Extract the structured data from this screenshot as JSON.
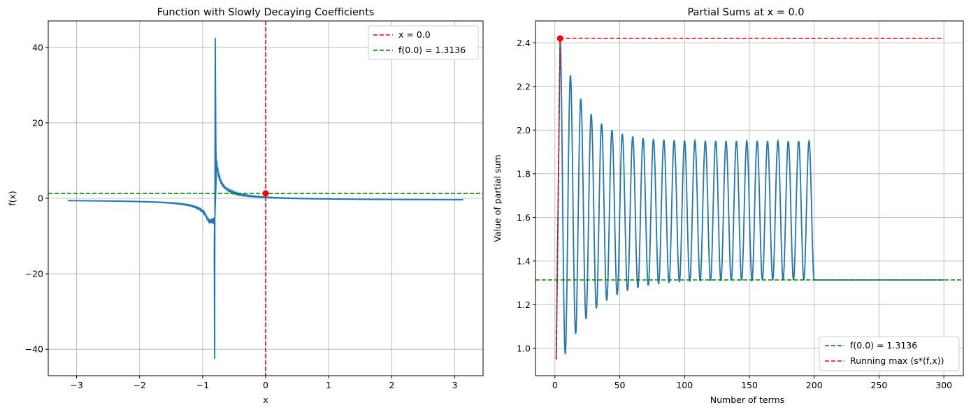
{
  "chart_data": [
    {
      "type": "line",
      "title": "Function with Slowly Decaying Coefficients",
      "xlabel": "x",
      "ylabel": "f(x)",
      "xlim": [
        -3.45,
        3.45
      ],
      "ylim": [
        -47,
        47
      ],
      "xticks": [
        -3,
        -2,
        -1,
        0,
        1,
        2,
        3
      ],
      "xtick_labels": [
        "−3",
        "−2",
        "−1",
        "0",
        "1",
        "2",
        "3"
      ],
      "yticks": [
        -40,
        -20,
        0,
        20,
        40
      ],
      "ytick_labels": [
        "−40",
        "−20",
        "0",
        "20",
        "40"
      ],
      "grid": true,
      "legend_position": "upper right",
      "series": [
        {
          "name": "",
          "color": "#1f77b4",
          "style": "solid",
          "description_points": [
            [
              -3.14,
              -0.4
            ],
            [
              -2.5,
              -0.75
            ],
            [
              -2.0,
              -1.1
            ],
            [
              -1.5,
              -1.7
            ],
            [
              -1.2,
              -2.5
            ],
            [
              -1.0,
              -3.6
            ],
            [
              -0.9,
              -5.5
            ],
            [
              -0.83,
              -12
            ],
            [
              -0.8,
              -42.5
            ],
            [
              -0.79,
              42.5
            ],
            [
              -0.77,
              14
            ],
            [
              -0.72,
              7
            ],
            [
              -0.6,
              4.2
            ],
            [
              -0.4,
              2.8
            ],
            [
              -0.2,
              2.0
            ],
            [
              0.0,
              1.3136
            ],
            [
              0.5,
              0.9
            ],
            [
              1.0,
              0.6
            ],
            [
              1.5,
              0.4
            ],
            [
              2.0,
              0.2
            ],
            [
              2.5,
              0.0
            ],
            [
              3.1,
              -0.3
            ]
          ]
        },
        {
          "name": "x = 0.0",
          "color": "#ff0000",
          "style": "dashed",
          "vertical_x": 0.0
        },
        {
          "name": "f(0.0) = 1.3136",
          "color": "#008000",
          "style": "dashed",
          "horizontal_y": 1.3136
        }
      ],
      "marker": {
        "x": 0.0,
        "y": 1.3136,
        "color": "#ff0000"
      }
    },
    {
      "type": "line",
      "title": "Partial Sums at x = 0.0",
      "xlabel": "Number of terms",
      "ylabel": "Value of partial sum",
      "xlim": [
        -15,
        315
      ],
      "ylim": [
        0.875,
        2.5
      ],
      "xticks": [
        0,
        50,
        100,
        150,
        200,
        250,
        300
      ],
      "xtick_labels": [
        "0",
        "50",
        "100",
        "150",
        "200",
        "250",
        "300"
      ],
      "yticks": [
        1.0,
        1.2,
        1.4,
        1.6,
        1.8,
        2.0,
        2.2,
        2.4
      ],
      "ytick_labels": [
        "1.0",
        "1.2",
        "1.4",
        "1.6",
        "1.8",
        "2.0",
        "2.2",
        "2.4"
      ],
      "grid": true,
      "legend_position": "lower right",
      "series": [
        {
          "name": "",
          "color": "#1f77b4",
          "style": "solid",
          "oscillation": {
            "period": 8,
            "n_end": 200,
            "start_value": 0.95,
            "first_peak": 2.42,
            "peak_limit": 1.95,
            "trough_limit": 1.3136,
            "tail_value": 1.3136
          }
        },
        {
          "name": "f(0.0) = 1.3136",
          "color": "#008000",
          "style": "dashed",
          "horizontal_y": 1.3136
        },
        {
          "name": "Running max (s*(f,x))",
          "color": "#ff0000",
          "style": "dashed",
          "points": [
            [
              1,
              0.95
            ],
            [
              4,
              2.42
            ],
            [
              300,
              2.42
            ]
          ]
        }
      ],
      "marker": {
        "x": 4,
        "y": 2.42,
        "color": "#ff0000"
      }
    }
  ]
}
